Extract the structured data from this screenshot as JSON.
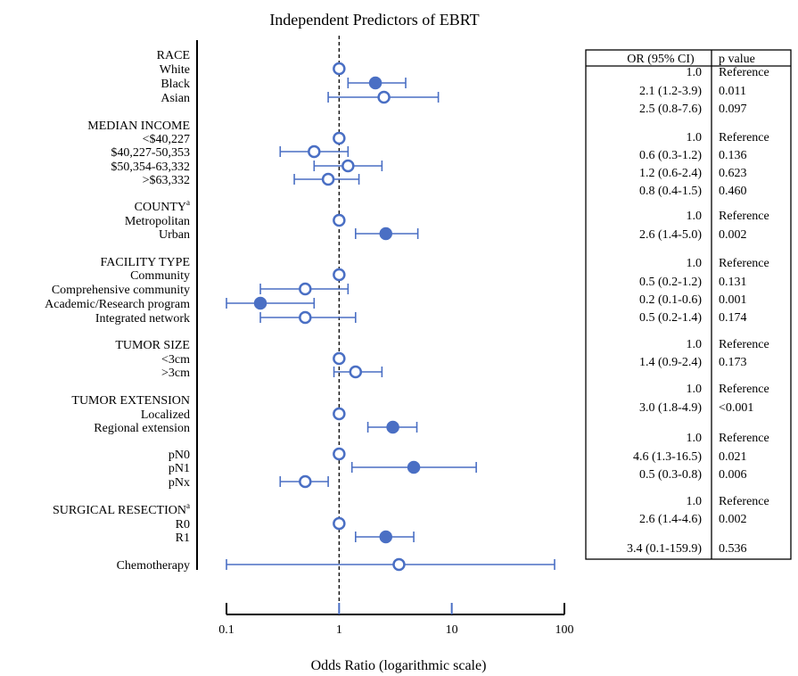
{
  "chart_data": {
    "type": "forest",
    "title": "Independent Predictors of EBRT",
    "xlabel": "Odds Ratio (logarithmic scale)",
    "x_scale": "log",
    "xlim": [
      0.1,
      100
    ],
    "x_ticks": [
      0.1,
      1,
      10,
      100
    ],
    "x_tick_labels": [
      "0.1",
      "1",
      "10",
      "100"
    ],
    "reference_line": 1,
    "colors": {
      "point": "#4a6fc4",
      "line": "#4a6fc4"
    },
    "table_headers": [
      "OR (95% CI)",
      "p value"
    ],
    "rows": [
      {
        "label": "RACE",
        "kind": "header"
      },
      {
        "label": "White",
        "or": 1.0,
        "lo": null,
        "hi": null,
        "filled": false,
        "ci_text": "1.0",
        "p": "Reference"
      },
      {
        "label": "Black",
        "or": 2.1,
        "lo": 1.2,
        "hi": 3.9,
        "filled": true,
        "ci_text": "2.1 (1.2-3.9)",
        "p": "0.011"
      },
      {
        "label": "Asian",
        "or": 2.5,
        "lo": 0.8,
        "hi": 7.6,
        "filled": false,
        "ci_text": "2.5 (0.8-7.6)",
        "p": "0.097"
      },
      {
        "label": "MEDIAN INCOME",
        "kind": "header"
      },
      {
        "label": "<$40,227",
        "or": 1.0,
        "lo": null,
        "hi": null,
        "filled": false,
        "ci_text": "1.0",
        "p": "Reference"
      },
      {
        "label": "$40,227-50,353",
        "or": 0.6,
        "lo": 0.3,
        "hi": 1.2,
        "filled": false,
        "ci_text": "0.6 (0.3-1.2)",
        "p": "0.136"
      },
      {
        "label": "$50,354-63,332",
        "or": 1.2,
        "lo": 0.6,
        "hi": 2.4,
        "filled": false,
        "ci_text": "1.2 (0.6-2.4)",
        "p": "0.623"
      },
      {
        "label": ">$63,332",
        "or": 0.8,
        "lo": 0.4,
        "hi": 1.5,
        "filled": false,
        "ci_text": "0.8 (0.4-1.5)",
        "p": "0.460"
      },
      {
        "label": "COUNTY",
        "sup": "a",
        "kind": "header"
      },
      {
        "label": "Metropolitan",
        "or": 1.0,
        "lo": null,
        "hi": null,
        "filled": false,
        "ci_text": "1.0",
        "p": "Reference"
      },
      {
        "label": "Urban",
        "or": 2.6,
        "lo": 1.4,
        "hi": 5.0,
        "filled": true,
        "ci_text": "2.6 (1.4-5.0)",
        "p": "0.002"
      },
      {
        "label": "FACILITY TYPE",
        "kind": "header"
      },
      {
        "label": "Community",
        "or": 1.0,
        "lo": null,
        "hi": null,
        "filled": false,
        "ci_text": "1.0",
        "p": "Reference"
      },
      {
        "label": "Comprehensive community",
        "or": 0.5,
        "lo": 0.2,
        "hi": 1.2,
        "filled": false,
        "ci_text": "0.5 (0.2-1.2)",
        "p": "0.131"
      },
      {
        "label": "Academic/Research program",
        "or": 0.2,
        "lo": 0.1,
        "hi": 0.6,
        "filled": true,
        "ci_text": "0.2 (0.1-0.6)",
        "p": "0.001"
      },
      {
        "label": "Integrated network",
        "or": 0.5,
        "lo": 0.2,
        "hi": 1.4,
        "filled": false,
        "ci_text": "0.5 (0.2-1.4)",
        "p": "0.174"
      },
      {
        "label": "TUMOR SIZE",
        "kind": "header"
      },
      {
        "label": "<3cm",
        "or": 1.0,
        "lo": null,
        "hi": null,
        "filled": false,
        "ci_text": "1.0",
        "p": "Reference"
      },
      {
        "label": ">3cm",
        "or": 1.4,
        "lo": 0.9,
        "hi": 2.4,
        "filled": false,
        "ci_text": "1.4 (0.9-2.4)",
        "p": "0.173"
      },
      {
        "label": "TUMOR EXTENSION",
        "kind": "header"
      },
      {
        "label": "Localized",
        "or": 1.0,
        "lo": null,
        "hi": null,
        "filled": false,
        "ci_text": "1.0",
        "p": "Reference"
      },
      {
        "label": "Regional extension",
        "or": 3.0,
        "lo": 1.8,
        "hi": 4.9,
        "filled": true,
        "ci_text": "3.0 (1.8-4.9)",
        "p": "<0.001"
      },
      {
        "label": "pN0",
        "or": 1.0,
        "lo": null,
        "hi": null,
        "filled": false,
        "ci_text": "1.0",
        "p": "Reference"
      },
      {
        "label": "pN1",
        "or": 4.6,
        "lo": 1.3,
        "hi": 16.5,
        "filled": true,
        "ci_text": "4.6 (1.3-16.5)",
        "p": "0.021"
      },
      {
        "label": "pNx",
        "or": 0.5,
        "lo": 0.3,
        "hi": 0.8,
        "filled": false,
        "ci_text": "0.5 (0.3-0.8)",
        "p": "0.006"
      },
      {
        "label": "SURGICAL RESECTION",
        "sup": "a",
        "kind": "header"
      },
      {
        "label": "R0",
        "or": 1.0,
        "lo": null,
        "hi": null,
        "filled": false,
        "ci_text": "1.0",
        "p": "Reference"
      },
      {
        "label": "R1",
        "or": 2.6,
        "lo": 1.4,
        "hi": 4.6,
        "filled": true,
        "ci_text": "2.6 (1.4-4.6)",
        "p": "0.002"
      },
      {
        "label": "Chemotherapy",
        "or": 3.4,
        "lo": 0.1,
        "hi": 159.9,
        "filled": false,
        "ci_text": "3.4 (0.1-159.9)",
        "p": "0.536"
      }
    ]
  }
}
